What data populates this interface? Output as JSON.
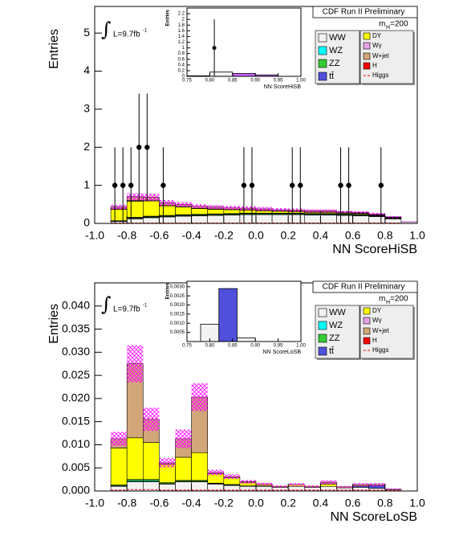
{
  "chart_data": [
    {
      "type": "stacked_histogram",
      "xlabel": "NN ScoreHiSB",
      "ylabel": "Entries",
      "header": "CDF Run II Preliminary",
      "mass": {
        "symbol": "m",
        "subscript": "H",
        "value": "=200"
      },
      "lumi": {
        "integral": "∫",
        "text": "L=9.7fb",
        "superscript": "-1"
      },
      "bins": [
        -1,
        -0.9,
        -0.8,
        -0.7,
        -0.6,
        -0.5,
        -0.4,
        -0.3,
        -0.2,
        -0.1,
        0,
        0.1,
        0.2,
        0.3,
        0.4,
        0.5,
        0.6,
        0.7,
        0.8,
        0.9,
        1
      ],
      "series": [
        {
          "name": "WW",
          "color": "#f2f2f2",
          "values": [
            0,
            0.05,
            0.12,
            0.15,
            0.17,
            0.19,
            0.2,
            0.21,
            0.22,
            0.23,
            0.23,
            0.23,
            0.23,
            0.22,
            0.22,
            0.21,
            0.2,
            0.18,
            0.12,
            0.04
          ]
        },
        {
          "name": "WZ",
          "color": "#00ffff",
          "values": [
            0,
            0.01,
            0.01,
            0.01,
            0.01,
            0.01,
            0.01,
            0.01,
            0.01,
            0.01,
            0.01,
            0.01,
            0.01,
            0.01,
            0.01,
            0.01,
            0.01,
            0.01,
            0.01,
            0
          ]
        },
        {
          "name": "ZZ",
          "color": "#33cc33",
          "values": [
            0,
            0.01,
            0.02,
            0.02,
            0.02,
            0.02,
            0.02,
            0.02,
            0.02,
            0.02,
            0.02,
            0.02,
            0.02,
            0.02,
            0.02,
            0.02,
            0.02,
            0.01,
            0.01,
            0
          ]
        },
        {
          "name": "tt̄",
          "color": "#5050dd",
          "values": [
            0,
            0,
            0.01,
            0.01,
            0.01,
            0.01,
            0.01,
            0.01,
            0.01,
            0.01,
            0.01,
            0.01,
            0.01,
            0.01,
            0.01,
            0.01,
            0.01,
            0.01,
            0.01,
            0
          ]
        },
        {
          "name": "DY",
          "color": "#ffff00",
          "values": [
            0,
            0.3,
            0.42,
            0.4,
            0.25,
            0.2,
            0.15,
            0.12,
            0.1,
            0.08,
            0.06,
            0.05,
            0.04,
            0.03,
            0.03,
            0.02,
            0.02,
            0.01,
            0.01,
            0
          ]
        },
        {
          "name": "Wγ",
          "color": "#e8a0e8",
          "values": [
            0,
            0.01,
            0.02,
            0.02,
            0.01,
            0.01,
            0.01,
            0.01,
            0.01,
            0.01,
            0.01,
            0.01,
            0.01,
            0.01,
            0.01,
            0.01,
            0.01,
            0.01,
            0,
            0
          ]
        },
        {
          "name": "W+jet",
          "color": "#d2a679",
          "values": [
            0,
            0.05,
            0.1,
            0.08,
            0.07,
            0.06,
            0.05,
            0.05,
            0.04,
            0.04,
            0.04,
            0.03,
            0.03,
            0.03,
            0.03,
            0.02,
            0.02,
            0.02,
            0.01,
            0
          ]
        },
        {
          "name": "H",
          "color": "#ff0000",
          "values": [
            0,
            0,
            0,
            0,
            0,
            0,
            0,
            0,
            0,
            0,
            0,
            0,
            0,
            0,
            0,
            0,
            0,
            0,
            0,
            0
          ]
        },
        {
          "name": "Higgs",
          "color": "#ff0000",
          "line": true,
          "values": [
            0,
            0.01,
            0.01,
            0.01,
            0.01,
            0.01,
            0.01,
            0.01,
            0.01,
            0.01,
            0.01,
            0.01,
            0.01,
            0.01,
            0.01,
            0.01,
            0.01,
            0.01,
            0.01,
            0
          ]
        }
      ],
      "uncertainty": [
        0,
        0.06,
        0.09,
        0.09,
        0.07,
        0.06,
        0.05,
        0.05,
        0.05,
        0.05,
        0.05,
        0.04,
        0.04,
        0.04,
        0.04,
        0.03,
        0.03,
        0.03,
        0.02,
        0.01
      ],
      "points": {
        "x": [
          -0.875,
          -0.825,
          -0.775,
          -0.725,
          -0.675,
          -0.575,
          -0.075,
          -0.025,
          0.225,
          0.275,
          0.525,
          0.575,
          0.775
        ],
        "y": [
          1,
          1,
          1,
          2,
          2,
          1,
          1,
          1,
          1,
          1,
          1,
          1,
          1
        ],
        "errors": [
          1,
          1,
          1,
          1.41,
          1.41,
          1,
          1,
          1,
          1,
          1,
          1,
          1,
          1
        ]
      },
      "xlim": [
        -1,
        1
      ],
      "ylim": [
        0,
        5.7
      ],
      "xticks": [
        {
          "value": -1,
          "label": "-1.0"
        },
        -0.8,
        -0.6,
        -0.4,
        -0.2,
        {
          "value": 0,
          "label": "0.0"
        },
        0.2,
        0.4,
        0.6,
        0.8,
        {
          "value": 1,
          "label": "1.0"
        }
      ],
      "yticks": [
        0,
        1,
        2,
        3,
        4,
        5
      ]
    },
    {
      "type": "histogram",
      "xlabel": "NN ScoreHiSB",
      "ylabel": "Entries",
      "bins": [
        0.75,
        0.8,
        0.85,
        0.9,
        0.95,
        1
      ],
      "values": [
        0.02,
        0.15,
        0.1,
        0.05,
        0
      ],
      "colors": [
        "#f2f2f2",
        "#f2f2f2",
        "#cc66ff",
        "#cc66ff",
        "#f2f2f2"
      ],
      "points": {
        "x": [
          0.81
        ],
        "y": [
          1
        ],
        "errors": [
          1
        ]
      },
      "xlim": [
        0.75,
        1
      ],
      "ylim": [
        0,
        2.4
      ],
      "xticks": [
        0.75,
        {
          "value": 0.8,
          "label": "0.80"
        },
        0.85,
        {
          "value": 0.9,
          "label": "0.90"
        },
        0.95,
        {
          "value": 1,
          "label": "1.00"
        }
      ],
      "yticks": [
        0,
        0.2,
        0.4,
        0.6,
        0.8,
        1,
        1.2,
        1.4,
        1.6,
        1.8,
        2,
        2.2
      ]
    },
    {
      "type": "stacked_histogram",
      "xlabel": "NN ScoreLoSB",
      "ylabel": "Entries",
      "header": "CDF Run II Preliminary",
      "mass": {
        "symbol": "m",
        "subscript": "H",
        "value": "=200"
      },
      "lumi": {
        "integral": "∫",
        "text": "L=9.7fb",
        "superscript": "-1"
      },
      "bins": [
        -1,
        -0.9,
        -0.8,
        -0.7,
        -0.6,
        -0.5,
        -0.4,
        -0.3,
        -0.2,
        -0.1,
        0,
        0.1,
        0.2,
        0.3,
        0.4,
        0.5,
        0.6,
        0.7,
        0.8,
        0.9,
        1
      ],
      "series": [
        {
          "name": "WW",
          "color": "#f2f2f2",
          "values": [
            0,
            0.001,
            0.002,
            0.002,
            0.0015,
            0.002,
            0.002,
            0.0015,
            0.0012,
            0.001,
            0.001,
            0.0008,
            0.001,
            0.0008,
            0.001,
            0.0007,
            0.0008,
            0.0006,
            0.0003,
            0
          ]
        },
        {
          "name": "WZ",
          "color": "#00ffff",
          "values": [
            0,
            0.0001,
            0.0002,
            0.0002,
            0.0001,
            0.0001,
            0.0001,
            0.0001,
            0.0001,
            0,
            0,
            0,
            0,
            0,
            0,
            0,
            0,
            0,
            0,
            0
          ]
        },
        {
          "name": "ZZ",
          "color": "#33cc33",
          "values": [
            0,
            0.0002,
            0.0003,
            0.0003,
            0.0002,
            0.0002,
            0.0002,
            0.0001,
            0.0001,
            0.0001,
            0.0001,
            0,
            0,
            0,
            0,
            0,
            0,
            0,
            0,
            0
          ]
        },
        {
          "name": "tt̄",
          "color": "#5050dd",
          "values": [
            0,
            0,
            0,
            0,
            0,
            0,
            0,
            0,
            0,
            0,
            0,
            0,
            0,
            0,
            0,
            0,
            0.0003,
            0.0006,
            0,
            0
          ]
        },
        {
          "name": "DY",
          "color": "#ffff00",
          "values": [
            0,
            0.008,
            0.009,
            0.008,
            0.004,
            0.005,
            0.006,
            0.002,
            0.0015,
            0.0008,
            0.0004,
            0.0002,
            0.0004,
            0.0002,
            0.0005,
            0.0002,
            0.0003,
            0.0002,
            0.0001,
            0
          ]
        },
        {
          "name": "Wγ",
          "color": "#e8a0e8",
          "values": [
            0,
            0,
            0,
            0,
            0,
            0,
            0,
            0,
            0,
            0,
            0,
            0,
            0,
            0,
            0,
            0,
            0,
            0,
            0,
            0
          ]
        },
        {
          "name": "W+jet",
          "color": "#d2a679",
          "values": [
            0,
            0.002,
            0.016,
            0.005,
            0.0003,
            0.004,
            0.012,
            0.0003,
            0.0002,
            0.0001,
            0,
            0,
            0,
            0,
            0.0004,
            0,
            0,
            0,
            0,
            0
          ]
        },
        {
          "name": "H",
          "color": "#ff0000",
          "values": [
            0,
            0,
            0,
            0,
            0,
            0,
            0,
            0,
            0,
            0,
            0,
            0,
            0,
            0,
            0,
            0,
            0,
            0,
            0,
            0
          ]
        },
        {
          "name": "Higgs",
          "color": "#ff0000",
          "line": true,
          "values": [
            0,
            0.0002,
            0.0003,
            0.0003,
            0.0002,
            0.0002,
            0.0002,
            0.0002,
            0.0002,
            0.0002,
            0.0002,
            0.0002,
            0.0002,
            0.0002,
            0.0002,
            0.0002,
            0.0002,
            0.0002,
            0.0001,
            0
          ]
        }
      ],
      "uncertainty": [
        0,
        0.0015,
        0.004,
        0.0025,
        0.001,
        0.002,
        0.003,
        0.0006,
        0.0005,
        0.0004,
        0.0003,
        0.0002,
        0.0003,
        0.0002,
        0.0004,
        0.0002,
        0.0003,
        0.0003,
        0.0001,
        0
      ],
      "xlim": [
        -1,
        1
      ],
      "ylim": [
        0,
        0.045
      ],
      "xticks": [
        {
          "value": -1,
          "label": "-1.0"
        },
        -0.8,
        -0.6,
        -0.4,
        -0.2,
        {
          "value": 0,
          "label": "0.0"
        },
        0.2,
        0.4,
        0.6,
        0.8,
        {
          "value": 1,
          "label": "1.0"
        }
      ],
      "yticks": [
        {
          "value": 0,
          "label": "0.000"
        },
        0.005,
        {
          "value": 0.01,
          "label": "0.010"
        },
        0.015,
        {
          "value": 0.02,
          "label": "0.020"
        },
        0.025,
        {
          "value": 0.03,
          "label": "0.030"
        },
        0.035,
        {
          "value": 0.04,
          "label": "0.040"
        }
      ]
    },
    {
      "type": "histogram",
      "xlabel": "NN ScoreLoSB",
      "ylabel": "Entries",
      "bins": [
        0.75,
        0.78,
        0.82,
        0.86,
        0.9,
        1
      ],
      "values": [
        0,
        0.00095,
        0.0029,
        0.0002,
        0
      ],
      "colors": [
        "#f2f2f2",
        "#f2f2f2",
        "#5050dd",
        "#f2f2f2",
        "#f2f2f2"
      ],
      "xlim": [
        0.75,
        1
      ],
      "ylim": [
        0,
        0.0033
      ],
      "xticks": [
        0.75,
        {
          "value": 0.8,
          "label": "0.80"
        },
        0.85,
        {
          "value": 0.9,
          "label": "0.90"
        },
        0.95,
        {
          "value": 1,
          "label": "1.00"
        }
      ],
      "yticks": [
        0.0005,
        {
          "value": 0.001,
          "label": "0.0010"
        },
        0.0015,
        {
          "value": 0.002,
          "label": "0.0020"
        },
        0.0025,
        {
          "value": 0.003,
          "label": "0.0030"
        }
      ]
    }
  ]
}
